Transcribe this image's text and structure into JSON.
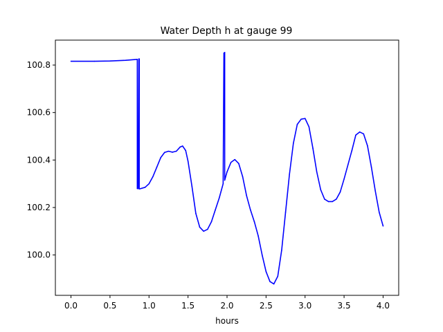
{
  "chart_data": {
    "type": "line",
    "title": "Water Depth h at gauge 99",
    "xlabel": "hours",
    "ylabel": "",
    "xlim": [
      -0.2,
      4.2
    ],
    "ylim": [
      99.83,
      100.905
    ],
    "xticks": [
      0.0,
      0.5,
      1.0,
      1.5,
      2.0,
      2.5,
      3.0,
      3.5,
      4.0
    ],
    "xtick_labels": [
      "0.0",
      "0.5",
      "1.0",
      "1.5",
      "2.0",
      "2.5",
      "3.0",
      "3.5",
      "4.0"
    ],
    "yticks": [
      100.0,
      100.2,
      100.4,
      100.6,
      100.8
    ],
    "ytick_labels": [
      "100.0",
      "100.2",
      "100.4",
      "100.6",
      "100.8"
    ],
    "grid": false,
    "legend": "none",
    "series": [
      {
        "color": "#0000ff",
        "points": [
          [
            0.0,
            100.816
          ],
          [
            0.3,
            100.816
          ],
          [
            0.5,
            100.817
          ],
          [
            0.7,
            100.82
          ],
          [
            0.85,
            100.824
          ],
          [
            0.85,
            100.28
          ],
          [
            0.86,
            100.28
          ],
          [
            0.87,
            100.826
          ],
          [
            0.875,
            100.826
          ],
          [
            0.875,
            100.278
          ],
          [
            0.95,
            100.285
          ],
          [
            1.0,
            100.3
          ],
          [
            1.05,
            100.33
          ],
          [
            1.1,
            100.37
          ],
          [
            1.15,
            100.41
          ],
          [
            1.2,
            100.432
          ],
          [
            1.25,
            100.437
          ],
          [
            1.3,
            100.433
          ],
          [
            1.35,
            100.437
          ],
          [
            1.4,
            100.455
          ],
          [
            1.43,
            100.459
          ],
          [
            1.47,
            100.44
          ],
          [
            1.5,
            100.395
          ],
          [
            1.55,
            100.29
          ],
          [
            1.6,
            100.175
          ],
          [
            1.65,
            100.117
          ],
          [
            1.7,
            100.1
          ],
          [
            1.75,
            100.108
          ],
          [
            1.8,
            100.14
          ],
          [
            1.85,
            100.19
          ],
          [
            1.9,
            100.24
          ],
          [
            1.95,
            100.3
          ],
          [
            1.96,
            100.85
          ],
          [
            1.97,
            100.853
          ],
          [
            1.97,
            100.315
          ],
          [
            2.0,
            100.35
          ],
          [
            2.05,
            100.39
          ],
          [
            2.1,
            100.402
          ],
          [
            2.15,
            100.385
          ],
          [
            2.2,
            100.33
          ],
          [
            2.25,
            100.25
          ],
          [
            2.3,
            100.19
          ],
          [
            2.35,
            100.14
          ],
          [
            2.4,
            100.08
          ],
          [
            2.45,
            100.0
          ],
          [
            2.5,
            99.93
          ],
          [
            2.55,
            99.888
          ],
          [
            2.6,
            99.878
          ],
          [
            2.65,
            99.91
          ],
          [
            2.7,
            100.02
          ],
          [
            2.75,
            100.18
          ],
          [
            2.8,
            100.34
          ],
          [
            2.85,
            100.47
          ],
          [
            2.9,
            100.55
          ],
          [
            2.95,
            100.572
          ],
          [
            3.0,
            100.575
          ],
          [
            3.05,
            100.54
          ],
          [
            3.1,
            100.45
          ],
          [
            3.15,
            100.35
          ],
          [
            3.2,
            100.275
          ],
          [
            3.25,
            100.235
          ],
          [
            3.3,
            100.225
          ],
          [
            3.35,
            100.225
          ],
          [
            3.4,
            100.235
          ],
          [
            3.45,
            100.265
          ],
          [
            3.5,
            100.32
          ],
          [
            3.55,
            100.38
          ],
          [
            3.6,
            100.44
          ],
          [
            3.65,
            100.505
          ],
          [
            3.7,
            100.518
          ],
          [
            3.75,
            100.51
          ],
          [
            3.8,
            100.46
          ],
          [
            3.85,
            100.37
          ],
          [
            3.9,
            100.27
          ],
          [
            3.95,
            100.18
          ],
          [
            4.0,
            100.122
          ]
        ]
      }
    ]
  }
}
